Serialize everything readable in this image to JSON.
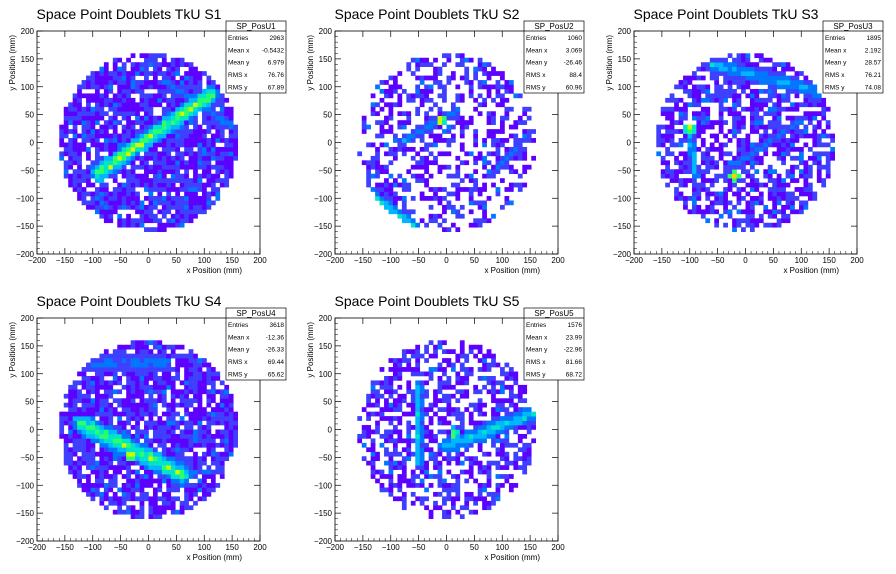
{
  "colors": {
    "palette": [
      "#5c00ff",
      "#3f3fff",
      "#0077ff",
      "#00b7ff",
      "#00e5c7",
      "#2bff6a",
      "#c8ff00",
      "#ffd000",
      "#ff2a00"
    ],
    "background": "#ffffff"
  },
  "stat_labels": {
    "entries": "Entries",
    "mean_x": "Mean x",
    "mean_y": "Mean y",
    "rms_x": "RMS x",
    "rms_y": "RMS y"
  },
  "chart_data": [
    {
      "type": "heatmap",
      "title": "Space Point Doublets TkU S1",
      "xlabel": "x Position (mm)",
      "ylabel": "y Position (mm)",
      "xlim": [
        -200,
        200
      ],
      "ylim": [
        -200,
        200
      ],
      "xticks": [
        -200,
        -150,
        -100,
        -50,
        0,
        50,
        100,
        150,
        200
      ],
      "yticks": [
        -200,
        -150,
        -100,
        -50,
        0,
        50,
        100,
        150,
        200
      ],
      "bin_width_mm": 8,
      "radius_mm": 160,
      "grid": false,
      "stats": {
        "name": "SP_PosU1",
        "entries": "2963",
        "mean_x": "-0.5432",
        "mean_y": "6.979",
        "rms_x": "76.76",
        "rms_y": "67.89"
      },
      "fill_density": 0.85,
      "features": [
        {
          "kind": "band",
          "from": [
            -90,
            -55
          ],
          "to": [
            110,
            85
          ],
          "width_mm": 16,
          "level": 0.8
        },
        {
          "kind": "band",
          "from": [
            30,
            110
          ],
          "to": [
            150,
            30
          ],
          "width_mm": 10,
          "level": 0.35
        }
      ]
    },
    {
      "type": "heatmap",
      "title": "Space Point Doublets TkU S2",
      "xlabel": "x Position (mm)",
      "ylabel": "y Position (mm)",
      "xlim": [
        -200,
        200
      ],
      "ylim": [
        -200,
        200
      ],
      "xticks": [
        -200,
        -150,
        -100,
        -50,
        0,
        50,
        100,
        150,
        200
      ],
      "yticks": [
        -200,
        -150,
        -100,
        -50,
        0,
        50,
        100,
        150,
        200
      ],
      "bin_width_mm": 8,
      "radius_mm": 160,
      "grid": false,
      "stats": {
        "name": "SP_PosU2",
        "entries": "1060",
        "mean_x": "3.069",
        "mean_y": "-26.46",
        "rms_x": "88.4",
        "rms_y": "60.96"
      },
      "fill_density": 0.45,
      "features": [
        {
          "kind": "band",
          "from": [
            -140,
            -90
          ],
          "to": [
            -60,
            -150
          ],
          "width_mm": 12,
          "level": 0.55
        },
        {
          "kind": "band",
          "from": [
            -80,
            0
          ],
          "to": [
            20,
            60
          ],
          "width_mm": 8,
          "level": 0.4
        },
        {
          "kind": "band",
          "from": [
            80,
            -60
          ],
          "to": [
            150,
            20
          ],
          "width_mm": 8,
          "level": 0.3
        },
        {
          "kind": "spot",
          "at": [
            -10,
            40
          ],
          "level": 1.0
        }
      ]
    },
    {
      "type": "heatmap",
      "title": "Space Point Doublets TkU S3",
      "xlabel": "x Position (mm)",
      "ylabel": "y Position (mm)",
      "xlim": [
        -200,
        200
      ],
      "ylim": [
        -200,
        200
      ],
      "xticks": [
        -200,
        -150,
        -100,
        -50,
        0,
        50,
        100,
        150,
        200
      ],
      "yticks": [
        -200,
        -150,
        -100,
        -50,
        0,
        50,
        100,
        150,
        200
      ],
      "bin_width_mm": 8,
      "radius_mm": 160,
      "grid": false,
      "stats": {
        "name": "SP_PosU3",
        "entries": "1895",
        "mean_x": "2.192",
        "mean_y": "28.57",
        "rms_x": "76.21",
        "rms_y": "74.08"
      },
      "fill_density": 0.65,
      "features": [
        {
          "kind": "band",
          "from": [
            -60,
            140
          ],
          "to": [
            140,
            90
          ],
          "width_mm": 14,
          "level": 0.45
        },
        {
          "kind": "band",
          "from": [
            -100,
            20
          ],
          "to": [
            -90,
            -60
          ],
          "width_mm": 8,
          "level": 0.5
        },
        {
          "kind": "band",
          "from": [
            -20,
            -40
          ],
          "to": [
            100,
            40
          ],
          "width_mm": 8,
          "level": 0.35
        },
        {
          "kind": "spot",
          "at": [
            -100,
            25
          ],
          "level": 1.0
        },
        {
          "kind": "spot",
          "at": [
            -20,
            -60
          ],
          "level": 0.95
        }
      ]
    },
    {
      "type": "heatmap",
      "title": "Space Point Doublets TkU S4",
      "xlabel": "x Position (mm)",
      "ylabel": "y Position (mm)",
      "xlim": [
        -200,
        200
      ],
      "ylim": [
        -200,
        200
      ],
      "xticks": [
        -200,
        -150,
        -100,
        -50,
        0,
        50,
        100,
        150,
        200
      ],
      "yticks": [
        -200,
        -150,
        -100,
        -50,
        0,
        50,
        100,
        150,
        200
      ],
      "bin_width_mm": 8,
      "radius_mm": 160,
      "grid": false,
      "stats": {
        "name": "SP_PosU4",
        "entries": "3618",
        "mean_x": "-12.36",
        "mean_y": "-26.33",
        "rms_x": "69.44",
        "rms_y": "65.62"
      },
      "fill_density": 0.8,
      "features": [
        {
          "kind": "band",
          "from": [
            -120,
            10
          ],
          "to": [
            60,
            -80
          ],
          "width_mm": 18,
          "level": 0.75
        },
        {
          "kind": "band",
          "from": [
            -120,
            120
          ],
          "to": [
            30,
            120
          ],
          "width_mm": 14,
          "level": 0.35
        },
        {
          "kind": "spot",
          "at": [
            -30,
            -45
          ],
          "level": 1.0
        }
      ]
    },
    {
      "type": "heatmap",
      "title": "Space Point Doublets TkU S5",
      "xlabel": "x Position (mm)",
      "ylabel": "y Position (mm)",
      "xlim": [
        -200,
        200
      ],
      "ylim": [
        -200,
        200
      ],
      "xticks": [
        -200,
        -150,
        -100,
        -50,
        0,
        50,
        100,
        150,
        200
      ],
      "yticks": [
        -200,
        -150,
        -100,
        -50,
        0,
        50,
        100,
        150,
        200
      ],
      "bin_width_mm": 8,
      "radius_mm": 160,
      "grid": false,
      "stats": {
        "name": "SP_PosU5",
        "entries": "1576",
        "mean_x": "23.99",
        "mean_y": "-22.96",
        "rms_x": "81.66",
        "rms_y": "68.72"
      },
      "fill_density": 0.55,
      "features": [
        {
          "kind": "band",
          "from": [
            -50,
            80
          ],
          "to": [
            -50,
            -60
          ],
          "width_mm": 8,
          "level": 0.55
        },
        {
          "kind": "band",
          "from": [
            0,
            -30
          ],
          "to": [
            160,
            30
          ],
          "width_mm": 14,
          "level": 0.55
        },
        {
          "kind": "spot",
          "at": [
            15,
            -5
          ],
          "level": 0.9
        }
      ]
    }
  ]
}
